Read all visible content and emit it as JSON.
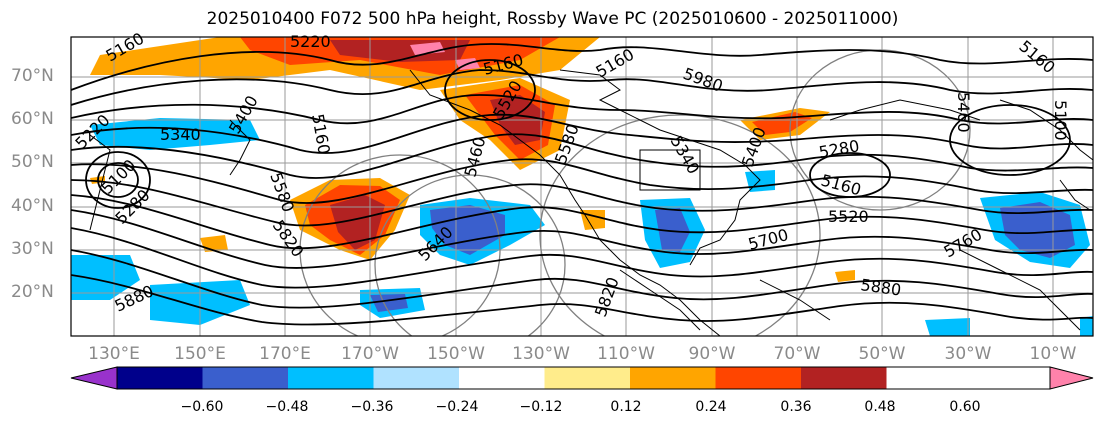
{
  "title": "2025010400 F072 500 hPa height, Rossby Wave PC (2025010600 - 2025011000)",
  "lat_labels": [
    "70°N",
    "60°N",
    "50°N",
    "40°N",
    "30°N",
    "20°N"
  ],
  "lon_labels": [
    "130°E",
    "150°E",
    "170°E",
    "170°W",
    "150°W",
    "130°W",
    "110°W",
    "90°W",
    "70°W",
    "50°W",
    "30°W",
    "10°W"
  ],
  "contour_labels": [
    "5160",
    "5220",
    "5160",
    "5400",
    "5220",
    "5340",
    "5160",
    "5100",
    "5280",
    "5580",
    "5820",
    "5880",
    "5640",
    "5460",
    "5820",
    "5700",
    "5760",
    "5880",
    "5520",
    "5160",
    "5280",
    "5460",
    "5160",
    "5100",
    "5400",
    "5340",
    "5580",
    "5520",
    "5160",
    "5980"
  ],
  "colorbar": {
    "ticks": [
      "−0.60",
      "−0.48",
      "−0.36",
      "−0.24",
      "−0.12",
      "0.12",
      "0.24",
      "0.36",
      "0.48",
      "0.60"
    ],
    "colors": [
      "#9932cc",
      "#00008b",
      "#3a5fcd",
      "#00bfff",
      "#b0e2ff",
      "#ffffff",
      "#ffec8b",
      "#ffa500",
      "#ff4500",
      "#b22222",
      "#ff82ab"
    ]
  },
  "colors": {
    "contour": "#000000",
    "grid": "#9a9a9a",
    "coastline": "#000000",
    "rossby_circle": "#808080"
  }
}
